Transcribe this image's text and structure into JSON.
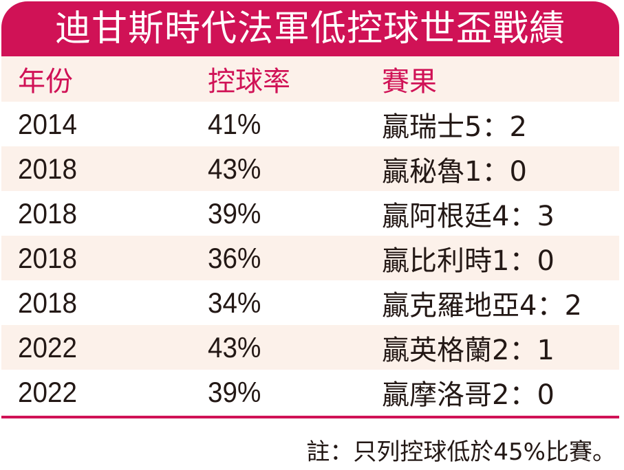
{
  "title": "迪甘斯時代法軍低控球世盃戰績",
  "colors": {
    "accent": "#d01256",
    "header_bg": "#fcf1ea",
    "text": "#231815"
  },
  "table": {
    "headers": [
      "年份",
      "控球率",
      "賽果"
    ],
    "rows": [
      [
        "2014",
        "41%",
        "贏瑞士5：2"
      ],
      [
        "2018",
        "43%",
        "贏秘魯1：0"
      ],
      [
        "2018",
        "39%",
        "贏阿根廷4：3"
      ],
      [
        "2018",
        "36%",
        "贏比利時1：0"
      ],
      [
        "2018",
        "34%",
        "贏克羅地亞4：2"
      ],
      [
        "2022",
        "43%",
        "贏英格蘭2：1"
      ],
      [
        "2022",
        "39%",
        "贏摩洛哥2：0"
      ]
    ]
  },
  "note": "註：只列控球低於45%比賽。"
}
